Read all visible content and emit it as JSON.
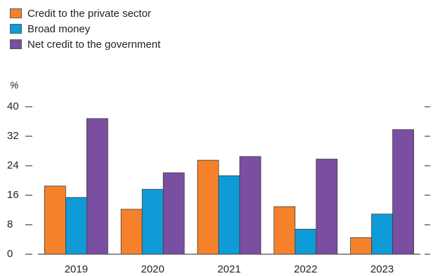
{
  "chart_data": {
    "type": "bar",
    "categories": [
      "2019",
      "2020",
      "2021",
      "2022",
      "2023"
    ],
    "series": [
      {
        "name": "Credit to the private sector",
        "color": "#f5822a",
        "values": [
          18.5,
          12.2,
          25.5,
          12.9,
          4.5
        ]
      },
      {
        "name": "Broad money",
        "color": "#0f9ad8",
        "values": [
          15.4,
          17.6,
          21.3,
          6.8,
          10.9
        ]
      },
      {
        "name": "Net credit to the government",
        "color": "#7a4ea0",
        "values": [
          36.8,
          22.1,
          26.5,
          25.8,
          33.8
        ]
      }
    ],
    "ylabel": "%",
    "ylim": [
      0,
      40
    ],
    "yticks": [
      0,
      8,
      16,
      24,
      32,
      40
    ],
    "legend_position": "top-left",
    "grid": false
  }
}
